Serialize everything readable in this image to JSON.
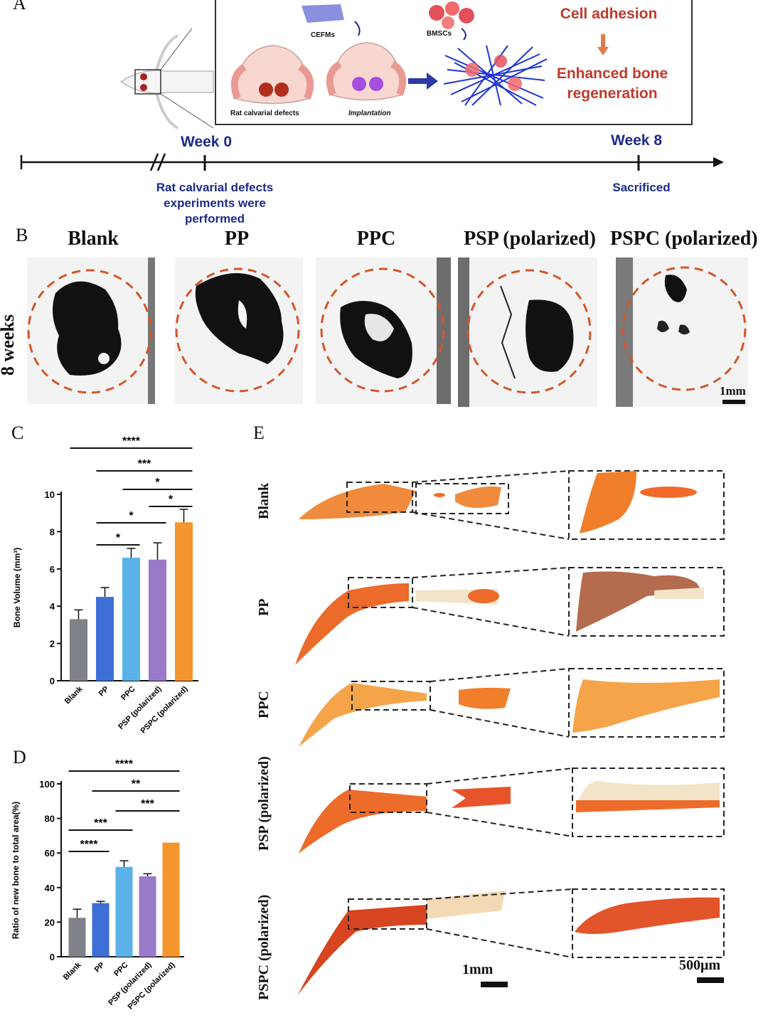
{
  "panels": {
    "a": "A",
    "b": "B",
    "c": "C",
    "d": "D",
    "e": "E"
  },
  "schematic": {
    "cefms_label": "CEFMs",
    "bmscs_label": "BMSCs",
    "defect_label": "Rat calvarial defects",
    "implant_label": "Implantation",
    "outcome_top": "Cell adhesion",
    "outcome_line1": "Enhanced bone",
    "outcome_line2": "regeneration",
    "accent_color": "#c0392b"
  },
  "timeline": {
    "start_label": "Week 0",
    "end_label": "Week 8",
    "start_note_1": "Rat calvarial defects",
    "start_note_2": "experiments were",
    "start_note_3": "performed",
    "end_note": "Sacrificed",
    "color": "#1d2a8a"
  },
  "microct": {
    "row_label": "8 weeks",
    "columns": [
      "Blank",
      "PP",
      "PPC",
      "PSP (polarized)",
      "PSPC (polarized)"
    ],
    "scale_label": "1mm"
  },
  "histology": {
    "rows": [
      "Blank",
      "PP",
      "PPC",
      "PSP (polarized)",
      "PSPC (polarized)"
    ],
    "scale_low": "1mm",
    "scale_high": "500μm"
  },
  "chart_data": [
    {
      "panel": "C",
      "type": "bar",
      "categories": [
        "Blank",
        "PP",
        "PPC",
        "PSP (polarized)",
        "PSPC (polarized)"
      ],
      "values": [
        3.3,
        4.5,
        6.6,
        6.5,
        8.5
      ],
      "errors": [
        0.5,
        0.5,
        0.5,
        0.9,
        0.7
      ],
      "colors": [
        "#7f8288",
        "#3d6fd6",
        "#5ab2e8",
        "#9a79c9",
        "#f5952e"
      ],
      "ylabel": "Bone Volume (mm³)",
      "ylim": [
        0,
        10
      ],
      "yticks": [
        0,
        2,
        4,
        6,
        8,
        10
      ],
      "significance": [
        {
          "from": 0,
          "to": 4,
          "stars": "****"
        },
        {
          "from": 1,
          "to": 4,
          "stars": "***"
        },
        {
          "from": 2,
          "to": 4,
          "stars": "*"
        },
        {
          "from": 3,
          "to": 4,
          "stars": "*"
        },
        {
          "from": 1,
          "to": 3,
          "stars": "*"
        },
        {
          "from": 1,
          "to": 2,
          "stars": "*"
        }
      ]
    },
    {
      "panel": "D",
      "type": "bar",
      "categories": [
        "Blank",
        "PP",
        "PPC",
        "PSP (polarized)",
        "PSPC (polarized)"
      ],
      "values": [
        22.5,
        31,
        52,
        46.5,
        66
      ],
      "errors": [
        5,
        1,
        3.5,
        1.5,
        0
      ],
      "colors": [
        "#7f8288",
        "#3d6fd6",
        "#5ab2e8",
        "#9a79c9",
        "#f5952e"
      ],
      "ylabel": "Ratio of new bone to total area(%)",
      "ylim": [
        0,
        100
      ],
      "yticks": [
        0,
        20,
        40,
        60,
        80,
        100
      ],
      "significance": [
        {
          "from": 0,
          "to": 4,
          "stars": "****"
        },
        {
          "from": 1,
          "to": 4,
          "stars": "**"
        },
        {
          "from": 2,
          "to": 4,
          "stars": "***"
        },
        {
          "from": 0,
          "to": 2,
          "stars": "***"
        },
        {
          "from": 0,
          "to": 1,
          "stars": "****"
        }
      ]
    }
  ]
}
